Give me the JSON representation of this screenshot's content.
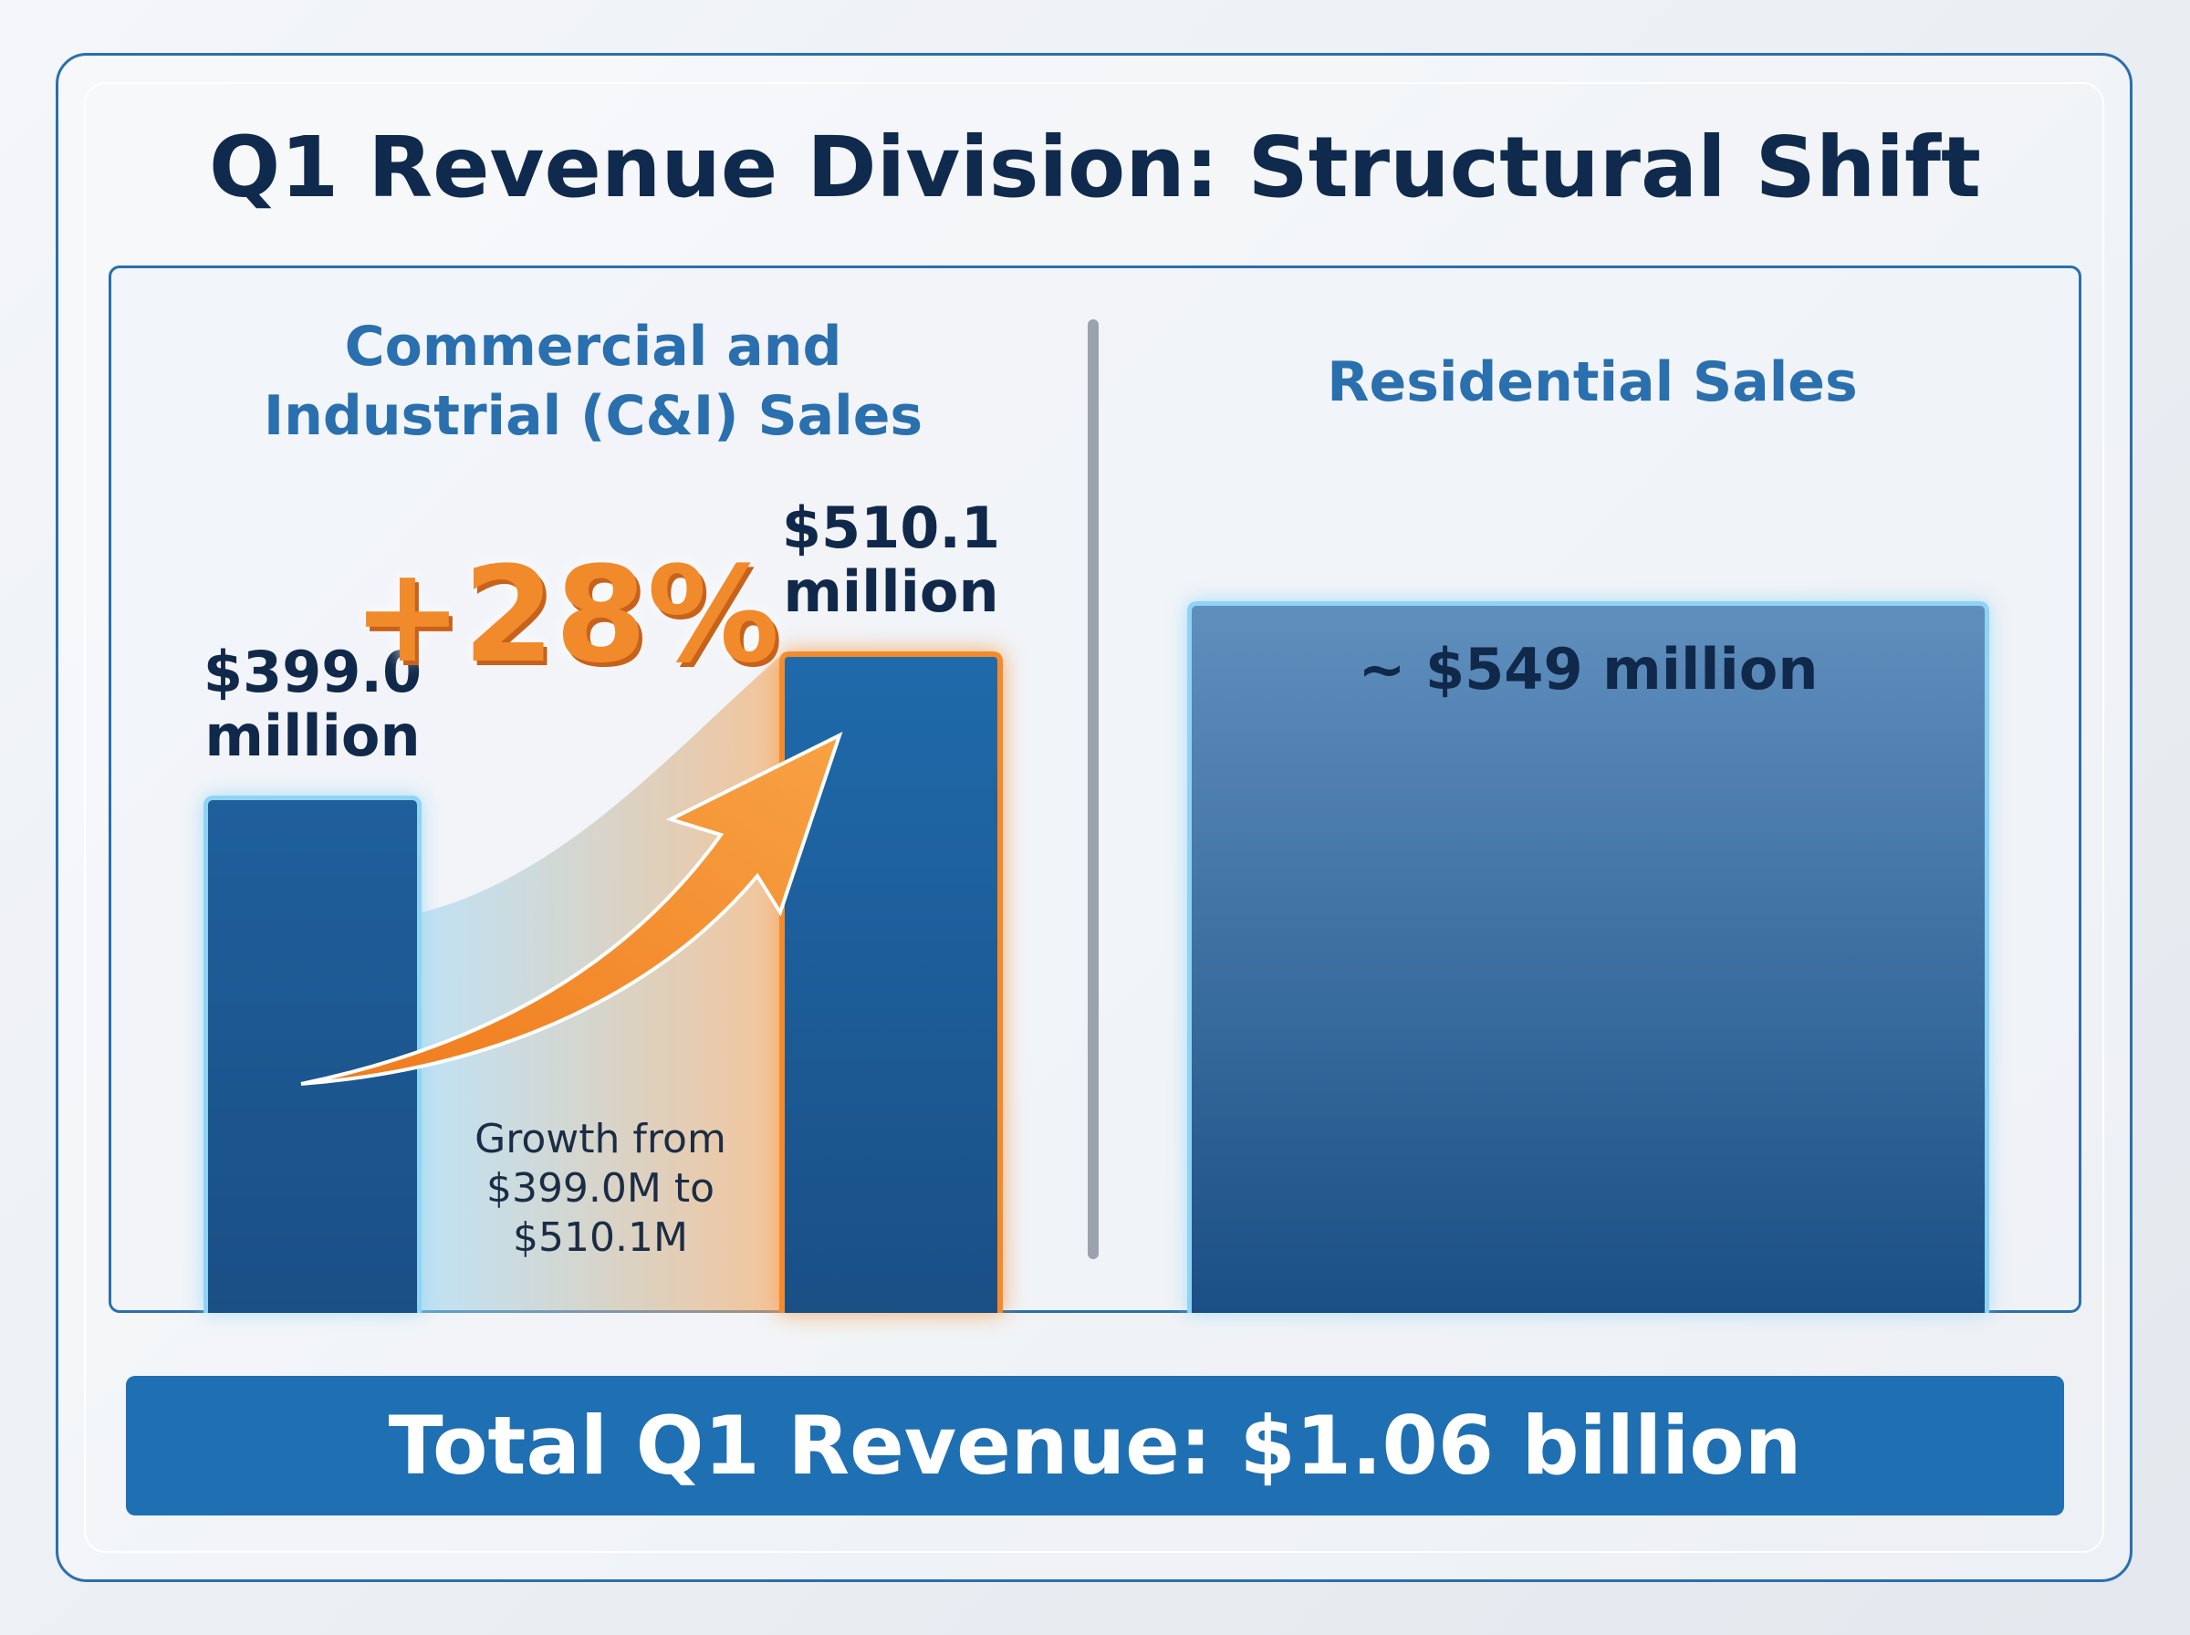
{
  "chart_data": {
    "type": "bar",
    "title": "Q1 Revenue Division: Structural Shift",
    "panels": [
      {
        "title": "Commercial and Industrial (C&I) Sales",
        "values": [
          399.0,
          510.1
        ],
        "value_labels": [
          "$399.0 million",
          "$510.1 million"
        ],
        "colors": [
          "#1f5f9c",
          "#1f6aab"
        ],
        "annotation": "+28%",
        "note": "Growth from $399.0M to $510.1M"
      },
      {
        "title": "Residential Sales",
        "values": [
          549
        ],
        "value_labels": [
          "~ $549 million"
        ],
        "colors": [
          "#5f8fbd"
        ]
      }
    ],
    "footer": "Total Q1 Revenue: $1.06 billion"
  }
}
